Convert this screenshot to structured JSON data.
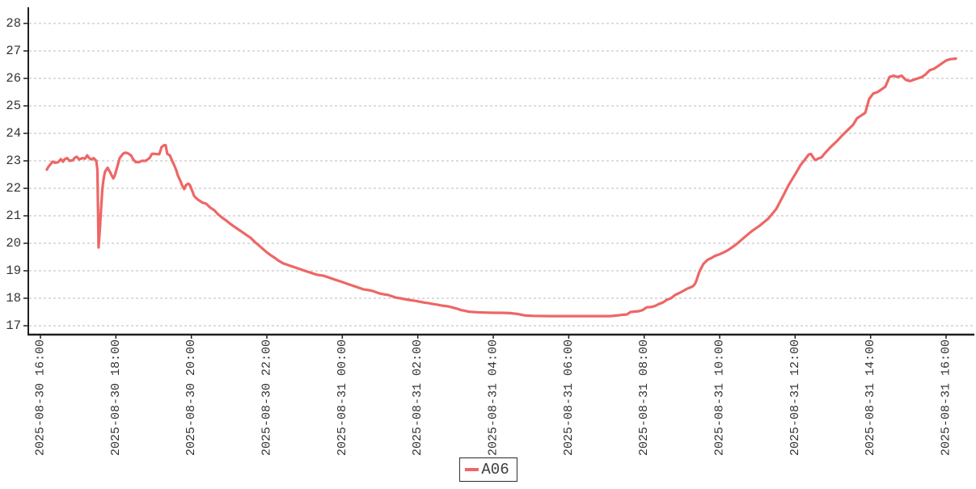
{
  "chart_data": {
    "type": "line",
    "title": "",
    "xlabel": "",
    "ylabel": "",
    "grid": true,
    "legend": {
      "position": "bottom-center",
      "entries": [
        "A06"
      ]
    },
    "y_axis": {
      "ticks": [
        17,
        18,
        19,
        20,
        21,
        22,
        23,
        24,
        25,
        26,
        27,
        28
      ],
      "range": [
        16.7,
        28.6
      ]
    },
    "x_axis": {
      "tick_interval_hours": 2,
      "range_hours": [
        0,
        24.73
      ],
      "tick_labels": [
        "2025-08-30 16:00",
        "2025-08-30 18:00",
        "2025-08-30 20:00",
        "2025-08-30 22:00",
        "2025-08-31 00:00",
        "2025-08-31 02:00",
        "2025-08-31 04:00",
        "2025-08-31 06:00",
        "2025-08-31 08:00",
        "2025-08-31 10:00",
        "2025-08-31 12:00",
        "2025-08-31 14:00",
        "2025-08-31 16:00"
      ]
    },
    "series": [
      {
        "name": "A06",
        "color": "#ee6666",
        "points": [
          [
            0.17,
            22.68
          ],
          [
            0.21,
            22.78
          ],
          [
            0.28,
            22.9
          ],
          [
            0.32,
            22.97
          ],
          [
            0.39,
            22.93
          ],
          [
            0.47,
            22.95
          ],
          [
            0.54,
            23.06
          ],
          [
            0.6,
            22.97
          ],
          [
            0.64,
            23.06
          ],
          [
            0.71,
            23.1
          ],
          [
            0.77,
            23.0
          ],
          [
            0.86,
            23.02
          ],
          [
            0.9,
            23.1
          ],
          [
            0.96,
            23.15
          ],
          [
            1.03,
            23.05
          ],
          [
            1.11,
            23.1
          ],
          [
            1.18,
            23.08
          ],
          [
            1.24,
            23.2
          ],
          [
            1.29,
            23.1
          ],
          [
            1.35,
            23.05
          ],
          [
            1.41,
            23.1
          ],
          [
            1.48,
            23.0
          ],
          [
            1.51,
            22.66
          ],
          [
            1.54,
            19.85
          ],
          [
            1.58,
            20.6
          ],
          [
            1.61,
            21.3
          ],
          [
            1.64,
            21.95
          ],
          [
            1.67,
            22.3
          ],
          [
            1.71,
            22.6
          ],
          [
            1.78,
            22.75
          ],
          [
            1.84,
            22.6
          ],
          [
            1.93,
            22.36
          ],
          [
            1.97,
            22.46
          ],
          [
            2.04,
            22.8
          ],
          [
            2.1,
            23.1
          ],
          [
            2.19,
            23.26
          ],
          [
            2.25,
            23.3
          ],
          [
            2.31,
            23.28
          ],
          [
            2.4,
            23.2
          ],
          [
            2.46,
            23.05
          ],
          [
            2.53,
            22.95
          ],
          [
            2.61,
            22.95
          ],
          [
            2.68,
            23.0
          ],
          [
            2.79,
            23.0
          ],
          [
            2.89,
            23.1
          ],
          [
            2.96,
            23.26
          ],
          [
            3.06,
            23.25
          ],
          [
            3.15,
            23.24
          ],
          [
            3.21,
            23.5
          ],
          [
            3.28,
            23.57
          ],
          [
            3.32,
            23.57
          ],
          [
            3.36,
            23.26
          ],
          [
            3.43,
            23.2
          ],
          [
            3.49,
            23.0
          ],
          [
            3.54,
            22.86
          ],
          [
            3.6,
            22.66
          ],
          [
            3.64,
            22.47
          ],
          [
            3.71,
            22.27
          ],
          [
            3.75,
            22.12
          ],
          [
            3.81,
            21.97
          ],
          [
            3.86,
            22.12
          ],
          [
            3.92,
            22.17
          ],
          [
            3.96,
            22.12
          ],
          [
            4.03,
            21.88
          ],
          [
            4.07,
            21.73
          ],
          [
            4.14,
            21.63
          ],
          [
            4.18,
            21.58
          ],
          [
            4.24,
            21.53
          ],
          [
            4.29,
            21.48
          ],
          [
            4.39,
            21.44
          ],
          [
            4.5,
            21.3
          ],
          [
            4.61,
            21.2
          ],
          [
            4.71,
            21.05
          ],
          [
            4.82,
            20.93
          ],
          [
            4.93,
            20.82
          ],
          [
            5.04,
            20.7
          ],
          [
            5.14,
            20.6
          ],
          [
            5.25,
            20.5
          ],
          [
            5.36,
            20.4
          ],
          [
            5.46,
            20.3
          ],
          [
            5.57,
            20.2
          ],
          [
            5.68,
            20.05
          ],
          [
            5.79,
            19.92
          ],
          [
            5.89,
            19.8
          ],
          [
            6.0,
            19.67
          ],
          [
            6.11,
            19.56
          ],
          [
            6.21,
            19.47
          ],
          [
            6.32,
            19.36
          ],
          [
            6.43,
            19.27
          ],
          [
            6.54,
            19.22
          ],
          [
            6.64,
            19.17
          ],
          [
            6.75,
            19.12
          ],
          [
            6.86,
            19.07
          ],
          [
            6.96,
            19.02
          ],
          [
            7.07,
            18.97
          ],
          [
            7.18,
            18.92
          ],
          [
            7.29,
            18.87
          ],
          [
            7.39,
            18.84
          ],
          [
            7.5,
            18.82
          ],
          [
            7.61,
            18.77
          ],
          [
            7.71,
            18.72
          ],
          [
            7.82,
            18.67
          ],
          [
            7.93,
            18.62
          ],
          [
            8.04,
            18.57
          ],
          [
            8.14,
            18.52
          ],
          [
            8.25,
            18.47
          ],
          [
            8.36,
            18.42
          ],
          [
            8.46,
            18.37
          ],
          [
            8.57,
            18.32
          ],
          [
            8.68,
            18.3
          ],
          [
            8.79,
            18.27
          ],
          [
            8.89,
            18.22
          ],
          [
            9.0,
            18.17
          ],
          [
            9.11,
            18.14
          ],
          [
            9.21,
            18.12
          ],
          [
            9.32,
            18.07
          ],
          [
            9.43,
            18.02
          ],
          [
            9.54,
            18.0
          ],
          [
            9.64,
            17.97
          ],
          [
            9.75,
            17.94
          ],
          [
            9.86,
            17.92
          ],
          [
            9.96,
            17.9
          ],
          [
            10.07,
            17.87
          ],
          [
            10.18,
            17.84
          ],
          [
            10.29,
            17.82
          ],
          [
            10.39,
            17.79
          ],
          [
            10.5,
            17.77
          ],
          [
            10.61,
            17.74
          ],
          [
            10.71,
            17.72
          ],
          [
            10.82,
            17.7
          ],
          [
            10.93,
            17.66
          ],
          [
            11.04,
            17.62
          ],
          [
            11.14,
            17.57
          ],
          [
            11.25,
            17.54
          ],
          [
            11.36,
            17.51
          ],
          [
            11.57,
            17.49
          ],
          [
            11.79,
            17.48
          ],
          [
            12.0,
            17.47
          ],
          [
            12.21,
            17.47
          ],
          [
            12.43,
            17.46
          ],
          [
            12.64,
            17.43
          ],
          [
            12.86,
            17.37
          ],
          [
            13.07,
            17.36
          ],
          [
            13.5,
            17.35
          ],
          [
            13.93,
            17.35
          ],
          [
            14.36,
            17.35
          ],
          [
            14.79,
            17.35
          ],
          [
            15.11,
            17.35
          ],
          [
            15.32,
            17.38
          ],
          [
            15.43,
            17.4
          ],
          [
            15.54,
            17.41
          ],
          [
            15.64,
            17.5
          ],
          [
            15.86,
            17.53
          ],
          [
            15.96,
            17.57
          ],
          [
            16.07,
            17.67
          ],
          [
            16.18,
            17.68
          ],
          [
            16.29,
            17.72
          ],
          [
            16.39,
            17.79
          ],
          [
            16.5,
            17.85
          ],
          [
            16.61,
            17.95
          ],
          [
            16.71,
            18.0
          ],
          [
            16.82,
            18.12
          ],
          [
            16.93,
            18.19
          ],
          [
            17.04,
            18.27
          ],
          [
            17.14,
            18.35
          ],
          [
            17.25,
            18.41
          ],
          [
            17.31,
            18.46
          ],
          [
            17.36,
            18.56
          ],
          [
            17.4,
            18.71
          ],
          [
            17.46,
            18.96
          ],
          [
            17.53,
            19.15
          ],
          [
            17.57,
            19.25
          ],
          [
            17.68,
            19.4
          ],
          [
            17.79,
            19.47
          ],
          [
            17.89,
            19.55
          ],
          [
            18.0,
            19.6
          ],
          [
            18.11,
            19.67
          ],
          [
            18.21,
            19.74
          ],
          [
            18.43,
            19.95
          ],
          [
            18.64,
            20.2
          ],
          [
            18.86,
            20.45
          ],
          [
            19.07,
            20.65
          ],
          [
            19.29,
            20.9
          ],
          [
            19.5,
            21.25
          ],
          [
            19.71,
            21.8
          ],
          [
            19.82,
            22.1
          ],
          [
            19.93,
            22.35
          ],
          [
            20.04,
            22.6
          ],
          [
            20.14,
            22.84
          ],
          [
            20.25,
            23.03
          ],
          [
            20.36,
            23.23
          ],
          [
            20.42,
            23.25
          ],
          [
            20.49,
            23.1
          ],
          [
            20.53,
            23.03
          ],
          [
            20.61,
            23.08
          ],
          [
            20.7,
            23.13
          ],
          [
            20.79,
            23.28
          ],
          [
            20.89,
            23.43
          ],
          [
            21.0,
            23.58
          ],
          [
            21.11,
            23.72
          ],
          [
            21.21,
            23.87
          ],
          [
            21.32,
            24.02
          ],
          [
            21.43,
            24.17
          ],
          [
            21.54,
            24.32
          ],
          [
            21.64,
            24.55
          ],
          [
            21.75,
            24.65
          ],
          [
            21.86,
            24.75
          ],
          [
            21.96,
            25.25
          ],
          [
            22.07,
            25.45
          ],
          [
            22.18,
            25.5
          ],
          [
            22.29,
            25.6
          ],
          [
            22.39,
            25.7
          ],
          [
            22.5,
            26.05
          ],
          [
            22.61,
            26.1
          ],
          [
            22.71,
            26.05
          ],
          [
            22.82,
            26.1
          ],
          [
            22.93,
            25.95
          ],
          [
            23.04,
            25.9
          ],
          [
            23.14,
            25.95
          ],
          [
            23.25,
            26.0
          ],
          [
            23.36,
            26.05
          ],
          [
            23.46,
            26.15
          ],
          [
            23.57,
            26.3
          ],
          [
            23.68,
            26.35
          ],
          [
            23.79,
            26.45
          ],
          [
            23.89,
            26.55
          ],
          [
            24.0,
            26.65
          ],
          [
            24.11,
            26.7
          ],
          [
            24.26,
            26.72
          ]
        ]
      }
    ],
    "colors": {
      "series_line": "#ee6666",
      "grid_line": "#bbbbbb",
      "axis_line": "#1f1f1f",
      "tick_text": "#333333",
      "background": "#ffffff"
    }
  }
}
